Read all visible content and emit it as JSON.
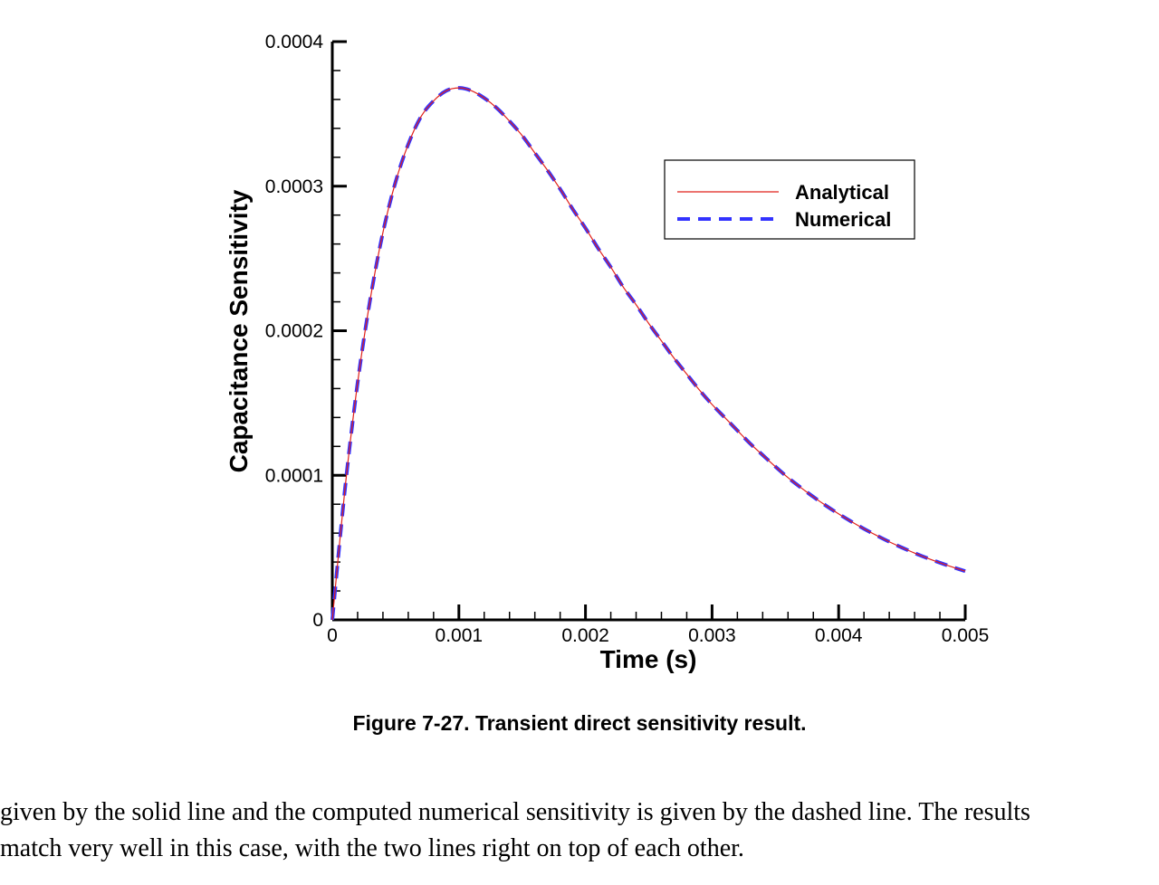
{
  "chart_data": {
    "type": "line",
    "xlabel": "Time (s)",
    "ylabel": "Capacitance Sensitivity",
    "xlim": [
      0,
      0.005
    ],
    "ylim": [
      0,
      0.0004
    ],
    "xticks": [
      "0",
      "0.001",
      "0.002",
      "0.003",
      "0.004",
      "0.005"
    ],
    "yticks": [
      "0",
      "0.0001",
      "0.0002",
      "0.0003",
      "0.0004"
    ],
    "grid": false,
    "legend_position": "top-right",
    "series": [
      {
        "name": "Analytical",
        "style": "solid",
        "color": "#e0201a",
        "x": [
          0,
          0.0001,
          0.0002,
          0.0003,
          0.0004,
          0.0005,
          0.0006,
          0.0007,
          0.0008,
          0.0009,
          0.001,
          0.0011,
          0.0012,
          0.0013,
          0.0014,
          0.0015,
          0.0016,
          0.0017,
          0.0018,
          0.0019,
          0.002,
          0.0021,
          0.0022,
          0.0023,
          0.0024,
          0.0025,
          0.0026,
          0.0027,
          0.0028,
          0.0029,
          0.003,
          0.0031,
          0.0032,
          0.0033,
          0.0034,
          0.0035,
          0.0036,
          0.0037,
          0.0038,
          0.0039,
          0.004,
          0.0041,
          0.0042,
          0.0043,
          0.0044,
          0.0045,
          0.0046,
          0.0047,
          0.0048,
          0.0049,
          0.005
        ],
        "y": [
          0,
          9.05e-05,
          0.000164,
          0.000222,
          0.000268,
          0.000303,
          0.000329,
          0.000348,
          0.000359,
          0.000366,
          0.000368,
          0.000366,
          0.000361,
          0.000354,
          0.000345,
          0.000335,
          0.000323,
          0.000311,
          0.000298,
          0.000284,
          0.000271,
          0.000257,
          0.000244,
          0.00023,
          0.000218,
          0.000205,
          0.000193,
          0.000181,
          0.00017,
          0.000159,
          0.000149,
          0.00014,
          0.000131,
          0.000122,
          0.000114,
          0.000106,
          9.84e-05,
          9.16e-05,
          8.51e-05,
          7.9e-05,
          7.33e-05,
          6.8e-05,
          6.3e-05,
          5.84e-05,
          5.4e-05,
          5e-05,
          4.62e-05,
          4.27e-05,
          3.95e-05,
          3.65e-05,
          3.37e-05
        ]
      },
      {
        "name": "Numerical",
        "style": "dashed",
        "color": "#3333ff",
        "x": [
          0,
          0.0001,
          0.0002,
          0.0003,
          0.0004,
          0.0005,
          0.0006,
          0.0007,
          0.0008,
          0.0009,
          0.001,
          0.0011,
          0.0012,
          0.0013,
          0.0014,
          0.0015,
          0.0016,
          0.0017,
          0.0018,
          0.0019,
          0.002,
          0.0021,
          0.0022,
          0.0023,
          0.0024,
          0.0025,
          0.0026,
          0.0027,
          0.0028,
          0.0029,
          0.003,
          0.0031,
          0.0032,
          0.0033,
          0.0034,
          0.0035,
          0.0036,
          0.0037,
          0.0038,
          0.0039,
          0.004,
          0.0041,
          0.0042,
          0.0043,
          0.0044,
          0.0045,
          0.0046,
          0.0047,
          0.0048,
          0.0049,
          0.005
        ],
        "y": [
          0,
          9.05e-05,
          0.000164,
          0.000222,
          0.000268,
          0.000303,
          0.000329,
          0.000348,
          0.000359,
          0.000366,
          0.000368,
          0.000366,
          0.000361,
          0.000354,
          0.000345,
          0.000335,
          0.000323,
          0.000311,
          0.000298,
          0.000284,
          0.000271,
          0.000257,
          0.000244,
          0.00023,
          0.000218,
          0.000205,
          0.000193,
          0.000181,
          0.00017,
          0.000159,
          0.000149,
          0.00014,
          0.000131,
          0.000122,
          0.000114,
          0.000106,
          9.84e-05,
          9.16e-05,
          8.51e-05,
          7.9e-05,
          7.33e-05,
          6.8e-05,
          6.3e-05,
          5.84e-05,
          5.4e-05,
          5e-05,
          4.62e-05,
          4.27e-05,
          3.95e-05,
          3.65e-05,
          3.37e-05
        ]
      }
    ]
  },
  "caption": "Figure 7-27. Transient direct sensitivity result.",
  "body_text": {
    "line1": "given by the solid line and the computed numerical sensitivity is given by the dashed line. The results",
    "line2": "match very well in this case, with the two lines right on top of each other."
  }
}
